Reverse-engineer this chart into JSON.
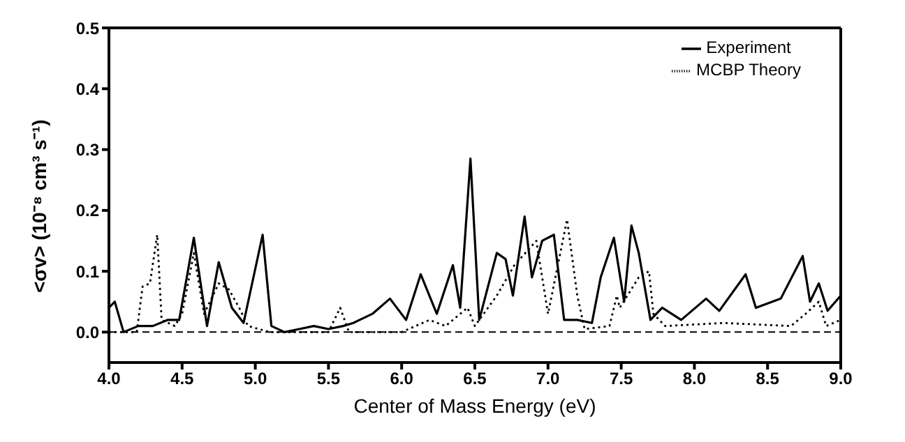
{
  "chart_data": {
    "type": "line",
    "xlabel": "Center of Mass Energy (eV)",
    "ylabel": "<σv> (10⁻⁸ cm³ s⁻¹)",
    "xlim": [
      4.0,
      9.0
    ],
    "ylim": [
      -0.05,
      0.5
    ],
    "xticks": [
      {
        "value": 4,
        "label": "4.0"
      },
      {
        "value": 4.5,
        "label": "4.5"
      },
      {
        "value": 5,
        "label": "5.0"
      },
      {
        "value": 5.5,
        "label": "5.5"
      },
      {
        "value": 6,
        "label": "6.0"
      },
      {
        "value": 6.5,
        "label": "6.5"
      },
      {
        "value": 7,
        "label": "7.0"
      },
      {
        "value": 7.5,
        "label": "7.5"
      },
      {
        "value": 8,
        "label": "8.0"
      },
      {
        "value": 8.5,
        "label": "8.5"
      },
      {
        "value": 9,
        "label": "9.0"
      }
    ],
    "yticks": [
      {
        "value": 0,
        "label": "0.0"
      },
      {
        "value": 0.1,
        "label": "0.1"
      },
      {
        "value": 0.2,
        "label": "0.2"
      },
      {
        "value": 0.3,
        "label": "0.3"
      },
      {
        "value": 0.4,
        "label": "0.4"
      },
      {
        "value": 0.5,
        "label": "0.5"
      }
    ],
    "legend": "top right",
    "marker": "none",
    "ref_lines": [
      {
        "axis": "y",
        "value": 0,
        "line_style": "dashed",
        "color": "#000000"
      }
    ],
    "series": [
      {
        "name": "Experiment",
        "color": "#000000",
        "line_style": "solid",
        "x": [
          4.0,
          4.04,
          4.1,
          4.2,
          4.3,
          4.4,
          4.48,
          4.58,
          4.67,
          4.75,
          4.84,
          4.92,
          5.05,
          5.11,
          5.2,
          5.3,
          5.4,
          5.5,
          5.6,
          5.67,
          5.8,
          5.92,
          6.03,
          6.13,
          6.24,
          6.35,
          6.4,
          6.47,
          6.53,
          6.65,
          6.71,
          6.76,
          6.84,
          6.89,
          6.96,
          7.04,
          7.11,
          7.2,
          7.3,
          7.36,
          7.45,
          7.52,
          7.57,
          7.62,
          7.7,
          7.78,
          7.91,
          8.08,
          8.17,
          8.35,
          8.42,
          8.59,
          8.74,
          8.79,
          8.85,
          8.91,
          9.0
        ],
        "values": [
          0.04,
          0.05,
          0.0,
          0.01,
          0.01,
          0.02,
          0.02,
          0.155,
          0.01,
          0.115,
          0.04,
          0.015,
          0.16,
          0.01,
          0.0,
          0.005,
          0.01,
          0.005,
          0.01,
          0.015,
          0.03,
          0.055,
          0.02,
          0.095,
          0.03,
          0.11,
          0.04,
          0.285,
          0.02,
          0.13,
          0.12,
          0.06,
          0.19,
          0.09,
          0.15,
          0.16,
          0.02,
          0.02,
          0.015,
          0.09,
          0.155,
          0.05,
          0.175,
          0.13,
          0.02,
          0.04,
          0.02,
          0.055,
          0.035,
          0.095,
          0.04,
          0.055,
          0.125,
          0.05,
          0.08,
          0.035,
          0.06
        ]
      },
      {
        "name": "MCBP Theory",
        "color": "#000000",
        "line_style": "dotted",
        "x": [
          4.0,
          4.19,
          4.23,
          4.28,
          4.33,
          4.36,
          4.45,
          4.5,
          4.58,
          4.65,
          4.75,
          4.82,
          4.89,
          4.95,
          5.1,
          5.5,
          5.58,
          5.64,
          6.0,
          6.19,
          6.3,
          6.45,
          6.5,
          6.65,
          6.77,
          6.92,
          7.0,
          7.13,
          7.2,
          7.25,
          7.42,
          7.47,
          7.49,
          7.62,
          7.69,
          7.72,
          7.8,
          8.2,
          8.66,
          8.76,
          8.85,
          8.9,
          9.0
        ],
        "values": [
          0.0,
          0.0,
          0.075,
          0.08,
          0.16,
          0.02,
          0.01,
          0.03,
          0.13,
          0.03,
          0.08,
          0.07,
          0.04,
          0.01,
          0.0,
          0.0,
          0.04,
          0.0,
          0.0,
          0.02,
          0.01,
          0.04,
          0.01,
          0.06,
          0.11,
          0.15,
          0.03,
          0.185,
          0.06,
          0.005,
          0.01,
          0.06,
          0.04,
          0.09,
          0.1,
          0.03,
          0.01,
          0.015,
          0.01,
          0.03,
          0.05,
          0.01,
          0.02
        ]
      }
    ]
  }
}
